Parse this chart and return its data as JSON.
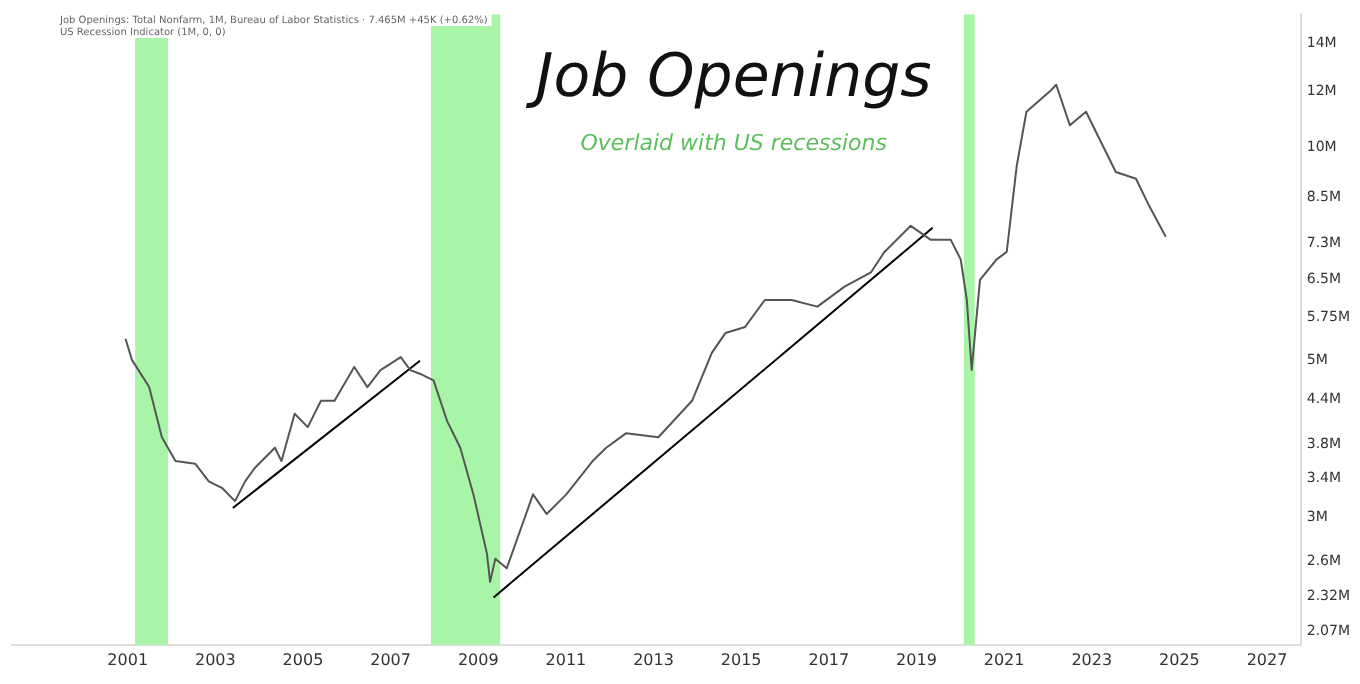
{
  "chart_data": {
    "type": "line",
    "title": "Job Openings",
    "subtitle": "Overlaid with US recessions",
    "annotations": [
      "Job Openings: Total Nonfarm, 1M, Bureau of Labor Statistics · 7.465M +45K (+0.62%)",
      "US Recession Indicator (1M, 0, 0)"
    ],
    "series": [
      {
        "color": "#555555",
        "x": [
          2000.95,
          2001.1,
          2001.49,
          2001.78,
          2002.09,
          2002.54,
          2002.85,
          2003.15,
          2003.45,
          2003.68,
          2003.9,
          2004.36,
          2004.51,
          2004.81,
          2005.11,
          2005.41,
          2005.72,
          2006.17,
          2006.47,
          2006.77,
          2007.23,
          2007.45,
          2007.68,
          2007.98,
          2008.29,
          2008.59,
          2008.89,
          2009.2,
          2009.27,
          2009.39,
          2009.65,
          2010.25,
          2010.56,
          2011.01,
          2011.61,
          2011.92,
          2012.37,
          2013.11,
          2013.88,
          2014.33,
          2014.64,
          2015.09,
          2015.54,
          2016.15,
          2016.74,
          2017.36,
          2017.96,
          2018.27,
          2018.87,
          2019.32,
          2019.78,
          2020.01,
          2020.15,
          2020.26,
          2020.45,
          2020.83,
          2021.06,
          2021.29,
          2021.51,
          2022.04,
          2022.19,
          2022.5,
          2022.87,
          2023.25,
          2023.55,
          2024.01,
          2024.31,
          2024.69
        ],
        "values": [
          5.36,
          5.0,
          4.58,
          3.89,
          3.6,
          3.57,
          3.37,
          3.3,
          3.16,
          3.37,
          3.52,
          3.76,
          3.6,
          4.2,
          4.02,
          4.38,
          4.38,
          4.89,
          4.58,
          4.84,
          5.05,
          4.84,
          4.78,
          4.68,
          4.1,
          3.76,
          3.23,
          2.66,
          2.43,
          2.62,
          2.54,
          3.23,
          3.03,
          3.23,
          3.6,
          3.76,
          3.94,
          3.89,
          4.38,
          5.12,
          5.46,
          5.57,
          6.08,
          6.08,
          5.95,
          6.35,
          6.65,
          7.11,
          7.74,
          7.4,
          7.4,
          6.94,
          6.08,
          4.84,
          6.49,
          6.94,
          7.11,
          9.42,
          11.22,
          11.98,
          12.25,
          10.74,
          11.22,
          10.05,
          9.22,
          9.02,
          8.26,
          7.47
        ]
      },
      {
        "type": "line",
        "color": "#000000",
        "x": [
          2003.4,
          2007.67
        ],
        "values": [
          3.09,
          4.99
        ]
      },
      {
        "type": "line",
        "color": "#000000",
        "x": [
          2009.35,
          2019.37
        ],
        "values": [
          2.31,
          7.69
        ]
      }
    ],
    "xlim": [
      1998.36,
      2027.77
    ],
    "xticks": [
      2001,
      2003,
      2005,
      2007,
      2009,
      2011,
      2013,
      2015,
      2017,
      2019,
      2021,
      2023,
      2025,
      2027
    ],
    "ylim": [
      1.98,
      15.4
    ],
    "yticks": [
      {
        "value": 2.07,
        "label": "2.07M"
      },
      {
        "value": 2.32,
        "label": "2.32M"
      },
      {
        "value": 2.6,
        "label": "2.6M"
      },
      {
        "value": 3,
        "label": "3M"
      },
      {
        "value": 3.4,
        "label": "3.4M"
      },
      {
        "value": 3.8,
        "label": "3.8M"
      },
      {
        "value": 4.4,
        "label": "4.4M"
      },
      {
        "value": 5,
        "label": "5M"
      },
      {
        "value": 5.75,
        "label": "5.75M"
      },
      {
        "value": 6.5,
        "label": "6.5M"
      },
      {
        "value": 7.3,
        "label": "7.3M"
      },
      {
        "value": 8.5,
        "label": "8.5M"
      },
      {
        "value": 10,
        "label": "10M"
      },
      {
        "value": 12,
        "label": "12M"
      },
      {
        "value": 14,
        "label": "14M"
      }
    ],
    "log": "y",
    "bands": [
      {
        "axis": "x",
        "from": 2001.17,
        "to": 2001.92,
        "color": "#a8f5a8"
      },
      {
        "axis": "x",
        "from": 2007.92,
        "to": 2009.5,
        "color": "#a8f5a8"
      },
      {
        "axis": "x",
        "from": 2020.08,
        "to": 2020.33,
        "color": "#a8f5a8"
      }
    ],
    "grid": false,
    "legend": false,
    "marker": "none"
  }
}
